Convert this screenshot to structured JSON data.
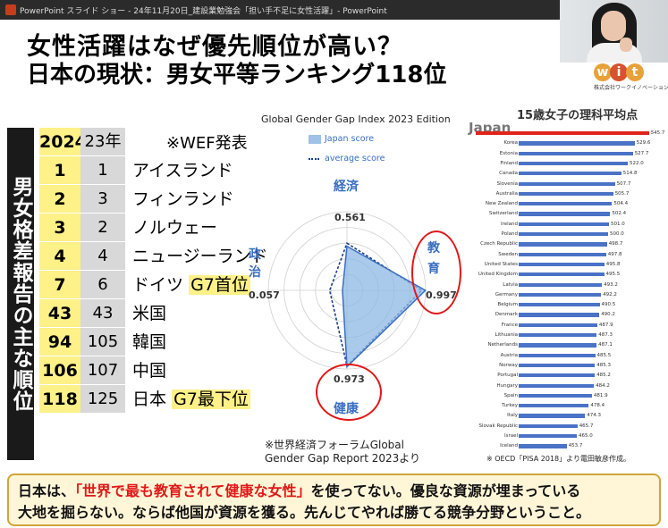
{
  "window": {
    "title": "PowerPoint スライド ショー - 24年11月20日_建設業勉強会「担い手不足に女性活躍」- PowerPoint"
  },
  "slide": {
    "title1": "女性活躍はなぜ優先順位が高い？",
    "title2": "日本の現状：男女平等ランキング118位",
    "logo_letters": [
      "w",
      "i",
      "t"
    ],
    "logo_sub": "株式会社ワークイノベーションズ",
    "vertical_title": "男女格差報告の主な順位",
    "table": {
      "header_year": "2024年",
      "header_prev": "23年",
      "header_note": "※WEF発表",
      "rows": [
        {
          "rank": "1",
          "prev": "1",
          "country": "アイスランド",
          "note": ""
        },
        {
          "rank": "2",
          "prev": "3",
          "country": "フィンランド",
          "note": ""
        },
        {
          "rank": "3",
          "prev": "2",
          "country": "ノルウェー",
          "note": ""
        },
        {
          "rank": "4",
          "prev": "4",
          "country": "ニュージーランド",
          "note": ""
        },
        {
          "rank": "7",
          "prev": "6",
          "country": "ドイツ",
          "note": "G7首位"
        },
        {
          "rank": "43",
          "prev": "43",
          "country": "米国",
          "note": ""
        },
        {
          "rank": "94",
          "prev": "105",
          "country": "韓国",
          "note": ""
        },
        {
          "rank": "106",
          "prev": "107",
          "country": "中国",
          "note": ""
        },
        {
          "rank": "118",
          "prev": "125",
          "country": "日本",
          "note": "G7最下位"
        }
      ]
    },
    "radar": {
      "title": "Global Gender Gap Index 2023 Edition",
      "legend_japan": "Japan score",
      "legend_avg": "average score",
      "labels": {
        "economy": "経済",
        "education_1": "教",
        "education_2": "育",
        "health": "健康",
        "politics_1": "政",
        "politics_2": "治"
      },
      "values": {
        "economy": "0.561",
        "education": "0.997",
        "health": "0.973",
        "politics": "0.057"
      },
      "source_line1": "※世界経済フォーラムGlobal",
      "source_line2": "Gender Gap Report 2023より"
    },
    "pisa": {
      "title": "15歳女子の理科平均点",
      "japan_label": "Japan",
      "source": "※ OECD「PISA 2018」より電田敏彦作成。",
      "countries": [
        "Japan",
        "Korea",
        "Estonia",
        "Finland",
        "Canada",
        "Slovenia",
        "Australia",
        "New Zealand",
        "Switzerland",
        "Ireland",
        "Poland",
        "Czech Republic",
        "Sweden",
        "United States",
        "United Kingdom",
        "Latvia",
        "Germany",
        "Belgium",
        "Denmark",
        "France",
        "Lithuania",
        "Netherlands",
        "Austria",
        "Norway",
        "Portugal",
        "Hungary",
        "Spain",
        "Turkey",
        "Italy",
        "Slovak Republic",
        "Israel",
        "Iceland"
      ],
      "scores": [
        "545.7",
        "529.6",
        "527.7",
        "522.0",
        "514.8",
        "507.7",
        "505.7",
        "504.4",
        "502.4",
        "501.0",
        "500.0",
        "498.7",
        "497.8",
        "495.8",
        "495.5",
        "493.2",
        "492.2",
        "490.5",
        "490.2",
        "487.9",
        "487.3",
        "487.1",
        "485.5",
        "485.3",
        "485.2",
        "484.2",
        "481.9",
        "478.4",
        "474.3",
        "465.7",
        "465.0",
        "453.7"
      ]
    },
    "bottom": {
      "prefix": "日本は、",
      "highlight": "「世界で最も教育されて健康な女性」",
      "rest_line1": "を使ってない。優良な資源が埋まっている",
      "line2": "大地を掘らない。ならば他国が資源を獲る。先んじてやれば勝てる競争分野ということ。"
    }
  }
}
